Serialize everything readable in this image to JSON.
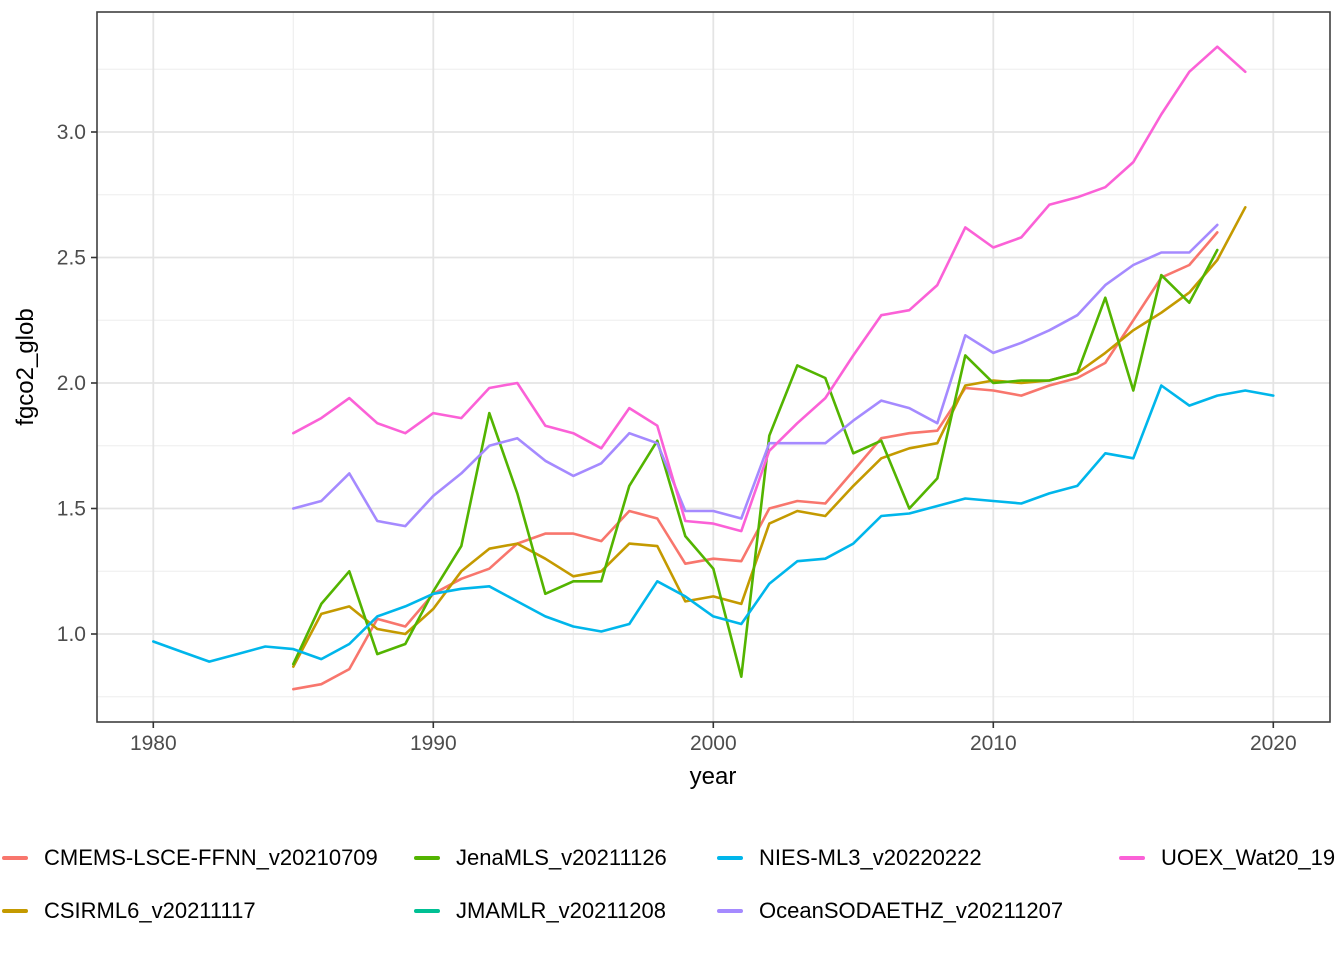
{
  "chart_data": {
    "type": "line",
    "title": "",
    "xlabel": "year",
    "ylabel": "fgco2_glob",
    "x_ticks": [
      "1980",
      "1990",
      "2000",
      "2010",
      "2020"
    ],
    "y_ticks": [
      "1.0",
      "1.5",
      "2.0",
      "2.5",
      "3.0"
    ],
    "x_minor_gridlines": [
      1985,
      1995,
      2005,
      2015
    ],
    "y_minor_gridlines": [
      0.75,
      1.25,
      1.75,
      2.25,
      2.75,
      3.25
    ],
    "xlim": [
      1978,
      2022
    ],
    "ylim": [
      0.65,
      3.48
    ],
    "grid": true,
    "legend_position": "bottom",
    "theme": {
      "background": "#ffffff",
      "panel_border": "#404040",
      "grid_major": "#e4e4e4",
      "grid_minor": "#f0f0f0",
      "tick_color": "#333333",
      "axis_text_color": "#4d4d4d",
      "title_text_color": "#000000"
    },
    "series": [
      {
        "name": "CMEMS-LSCE-FFNN_v20210709",
        "color": "#F8766D",
        "start_year": 1985,
        "values": [
          0.78,
          0.8,
          0.86,
          1.06,
          1.03,
          1.16,
          1.22,
          1.26,
          1.36,
          1.4,
          1.4,
          1.37,
          1.49,
          1.46,
          1.28,
          1.3,
          1.29,
          1.5,
          1.53,
          1.52,
          1.65,
          1.78,
          1.8,
          1.81,
          1.98,
          1.97,
          1.95,
          1.99,
          2.02,
          2.08,
          2.25,
          2.42,
          2.47,
          2.6
        ]
      },
      {
        "name": "CSIRML6_v20211117",
        "color": "#C49A00",
        "start_year": 1985,
        "values": [
          0.87,
          1.08,
          1.11,
          1.02,
          1.0,
          1.1,
          1.25,
          1.34,
          1.36,
          1.3,
          1.23,
          1.25,
          1.36,
          1.35,
          1.13,
          1.15,
          1.12,
          1.44,
          1.49,
          1.47,
          1.59,
          1.7,
          1.74,
          1.76,
          1.99,
          2.01,
          2.0,
          2.01,
          2.04,
          2.12,
          2.21,
          2.28,
          2.36,
          2.49,
          2.7
        ]
      },
      {
        "name": "JenaMLS_v20211126",
        "color": "#53B400",
        "start_year": 1985,
        "values": [
          0.88,
          1.12,
          1.25,
          0.92,
          0.96,
          1.17,
          1.35,
          1.88,
          1.56,
          1.16,
          1.21,
          1.21,
          1.59,
          1.77,
          1.39,
          1.26,
          0.83,
          1.79,
          2.07,
          2.02,
          1.72,
          1.77,
          1.5,
          1.62,
          2.11,
          2.0,
          2.01,
          2.01,
          2.04,
          2.34,
          1.97,
          2.43,
          2.32,
          2.53
        ]
      },
      {
        "name": "JMAMLR_v20211208",
        "color": "#00C094",
        "start_year": null,
        "values": []
      },
      {
        "name": "NIES-ML3_v20220222",
        "color": "#00B6EB",
        "start_year": 1980,
        "values": [
          0.97,
          0.93,
          0.89,
          0.92,
          0.95,
          0.94,
          0.9,
          0.96,
          1.07,
          1.11,
          1.16,
          1.18,
          1.19,
          1.13,
          1.07,
          1.03,
          1.01,
          1.04,
          1.21,
          1.15,
          1.07,
          1.04,
          1.2,
          1.29,
          1.3,
          1.36,
          1.47,
          1.48,
          1.51,
          1.54,
          1.53,
          1.52,
          1.56,
          1.59,
          1.72,
          1.7,
          1.99,
          1.91,
          1.95,
          1.97,
          1.95
        ]
      },
      {
        "name": "OceanSODAETHZ_v20211207",
        "color": "#A58AFF",
        "start_year": 1985,
        "values": [
          1.5,
          1.53,
          1.64,
          1.45,
          1.43,
          1.55,
          1.64,
          1.75,
          1.78,
          1.69,
          1.63,
          1.68,
          1.8,
          1.76,
          1.49,
          1.49,
          1.46,
          1.76,
          1.76,
          1.76,
          1.85,
          1.93,
          1.9,
          1.84,
          2.19,
          2.12,
          2.16,
          2.21,
          2.27,
          2.39,
          2.47,
          2.52,
          2.52,
          2.63
        ]
      },
      {
        "name": "UOEX_Wat20_19",
        "color": "#FB61D7",
        "start_year": 1985,
        "values": [
          1.8,
          1.86,
          1.94,
          1.84,
          1.8,
          1.88,
          1.86,
          1.98,
          2.0,
          1.83,
          1.8,
          1.74,
          1.9,
          1.83,
          1.45,
          1.44,
          1.41,
          1.73,
          1.84,
          1.94,
          2.11,
          2.27,
          2.29,
          2.39,
          2.62,
          2.54,
          2.58,
          2.71,
          2.74,
          2.78,
          2.88,
          3.07,
          3.24,
          3.34,
          3.24
        ]
      }
    ],
    "legend_entries": [
      "CMEMS-LSCE-FFNN_v20210709",
      "CSIRML6_v20211117",
      "JenaMLS_v20211126",
      "JMAMLR_v20211208",
      "NIES-ML3_v20220222",
      "OceanSODAETHZ_v20211207",
      "UOEX_Wat20_19"
    ]
  }
}
